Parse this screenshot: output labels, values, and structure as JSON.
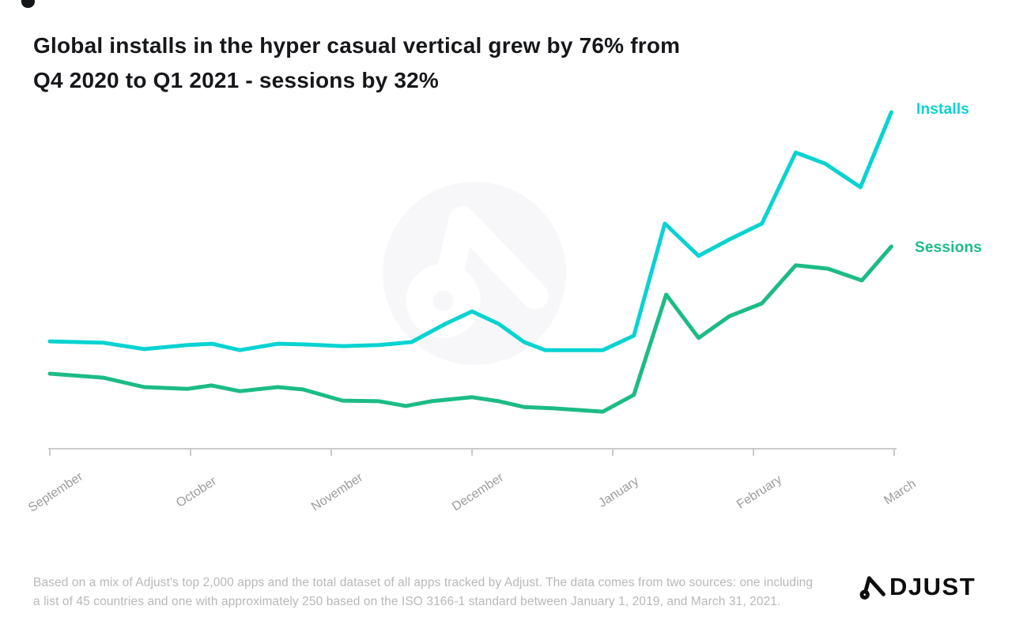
{
  "title": {
    "line1": "Global installs in the hyper casual vertical grew by 76% from",
    "line2": "Q4 2020 to Q1 2021 - sessions by 32%"
  },
  "chart_data": {
    "type": "line",
    "title": "Global installs in the hyper casual vertical grew by 76% from Q4 2020 to Q1 2021 - sessions by 32%",
    "categories": [
      "September",
      "October",
      "November",
      "December",
      "January",
      "February",
      "March"
    ],
    "x_unit": "months (points are weekly samples; x measured in month-tick units, 0 = September)",
    "y_axis_shown": false,
    "y_unit": "relative volume index (no y-axis labels shown in chart)",
    "ylim": [
      0,
      105
    ],
    "grid": false,
    "legend_position": "right of line endpoints",
    "axis_color": "#cbcbcb",
    "tick_label_color": "#9c9c9c",
    "tick_label_rotation_deg": -33,
    "series": [
      {
        "name": "Installs",
        "color": "#09d3d2",
        "points": [
          [
            0,
            31.9
          ],
          [
            0.38,
            31.5
          ],
          [
            0.67,
            29.6
          ],
          [
            0.98,
            30.8
          ],
          [
            1.15,
            31.2
          ],
          [
            1.35,
            29.3
          ],
          [
            1.62,
            31.2
          ],
          [
            1.8,
            31.0
          ],
          [
            2.08,
            30.5
          ],
          [
            2.34,
            30.8
          ],
          [
            2.57,
            31.7
          ],
          [
            2.81,
            37.1
          ],
          [
            3.0,
            40.8
          ],
          [
            3.19,
            37.1
          ],
          [
            3.37,
            31.7
          ],
          [
            3.52,
            29.3
          ],
          [
            3.93,
            29.3
          ],
          [
            4.15,
            33.6
          ],
          [
            4.37,
            66.9
          ],
          [
            4.61,
            57.3
          ],
          [
            4.83,
            62.2
          ],
          [
            5.06,
            66.9
          ],
          [
            5.3,
            88.0
          ],
          [
            5.51,
            84.7
          ],
          [
            5.76,
            77.7
          ],
          [
            5.98,
            100.0
          ]
        ]
      },
      {
        "name": "Sessions",
        "color": "#1dbb85",
        "points": [
          [
            0,
            22.3
          ],
          [
            0.38,
            21.1
          ],
          [
            0.67,
            18.3
          ],
          [
            0.98,
            17.8
          ],
          [
            1.15,
            18.8
          ],
          [
            1.35,
            17.1
          ],
          [
            1.62,
            18.3
          ],
          [
            1.8,
            17.6
          ],
          [
            2.08,
            14.3
          ],
          [
            2.34,
            14.1
          ],
          [
            2.53,
            12.7
          ],
          [
            2.71,
            14.1
          ],
          [
            3.0,
            15.3
          ],
          [
            3.19,
            14.1
          ],
          [
            3.37,
            12.4
          ],
          [
            3.58,
            12.0
          ],
          [
            3.93,
            11.0
          ],
          [
            4.15,
            16.0
          ],
          [
            4.38,
            45.8
          ],
          [
            4.61,
            32.9
          ],
          [
            4.83,
            39.4
          ],
          [
            5.06,
            43.2
          ],
          [
            5.3,
            54.5
          ],
          [
            5.53,
            53.5
          ],
          [
            5.77,
            50.0
          ],
          [
            5.98,
            60.1
          ]
        ]
      }
    ],
    "annotations": {
      "installs_growth_q4_to_q1": "76%",
      "sessions_growth_q4_to_q1": "32%"
    }
  },
  "watermark": {
    "icon": "adjust-a-logo",
    "circle_color": "#f7f7f9"
  },
  "footer": {
    "line1": "Based on a mix of Adjust's top 2,000 apps and the total dataset of all apps tracked by Adjust. The data comes from two sources: one including",
    "line2": "a list of 45 countries and one with approximately 250 based on the ISO 3166-1 standard between January 1, 2019, and March 31, 2021."
  },
  "brand": {
    "wordmark": "ADJUST",
    "wordmark_rest": "DJUST",
    "color": "#0c0d0e"
  }
}
